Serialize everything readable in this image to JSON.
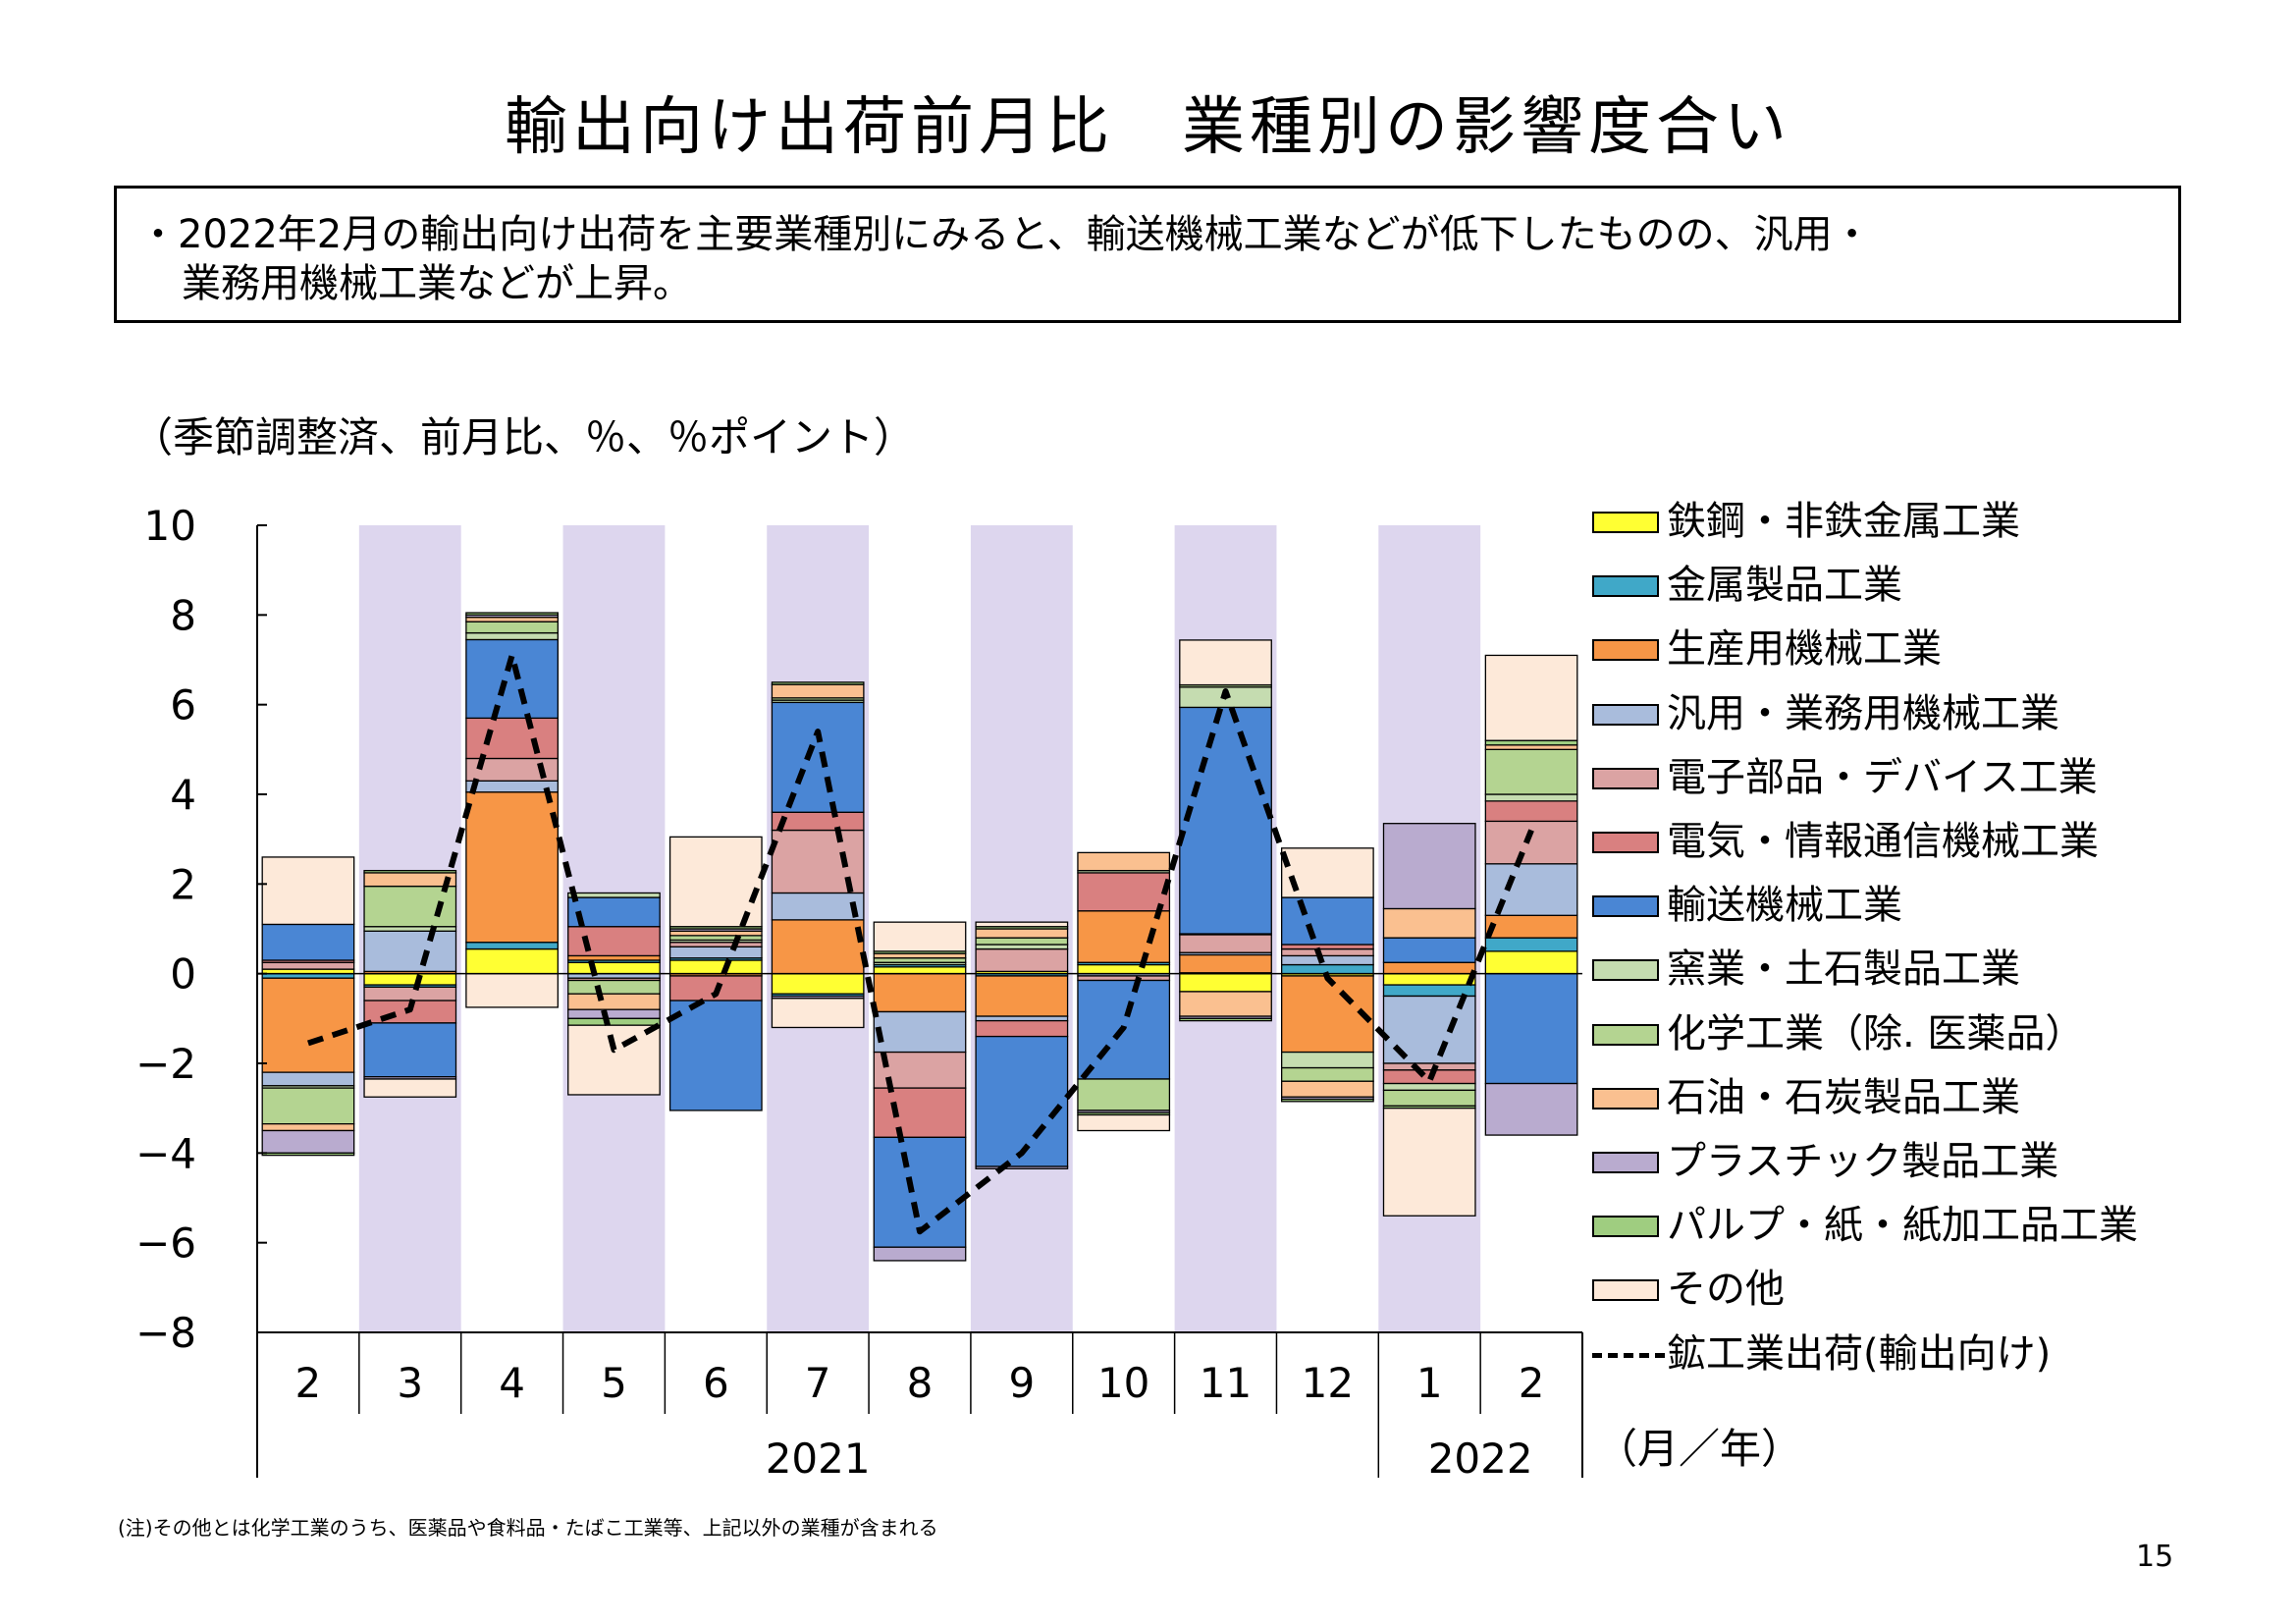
{
  "page": {
    "title": "輸出向け出荷前月比　業種別の影響度合い",
    "summary_line1": "・2022年2月の輸出向け出荷を主要業種別にみると、輸送機械工業などが低下したものの、汎用・",
    "summary_line2": "業務用機械工業などが上昇。",
    "unit_note": "（季節調整済、前月比、％、％ポイント）",
    "footnote": "(注)その他とは化学工業のうち、医薬品や食料品・たばこ工業等、上記以外の業種が含まれる",
    "page_number": "15"
  },
  "chart_data": {
    "type": "bar",
    "stacked": true,
    "categories": [
      "2",
      "3",
      "4",
      "5",
      "6",
      "7",
      "8",
      "9",
      "10",
      "11",
      "12",
      "1",
      "2"
    ],
    "year_labels": [
      {
        "label": "2021",
        "from": 0,
        "to": 10
      },
      {
        "label": "2022",
        "from": 11,
        "to": 12
      }
    ],
    "x_unit_label": "（月／年）",
    "ylim": [
      -8,
      10
    ],
    "yticks": [
      10,
      8,
      6,
      4,
      2,
      0,
      -2,
      -4,
      -6,
      -8
    ],
    "shaded_categories": [
      1,
      3,
      5,
      7,
      9,
      11
    ],
    "shade_color": "#ddd6ee",
    "series": [
      {
        "name": "鉄鋼・非鉄金属工業",
        "color": "#ffff33",
        "values": [
          0.1,
          -0.25,
          0.55,
          0.25,
          0.3,
          -0.45,
          0.15,
          0.05,
          0.2,
          -0.4,
          -0.05,
          -0.25,
          0.5
        ]
      },
      {
        "name": "金属製品工業",
        "color": "#40a8c8",
        "values": [
          -0.1,
          -0.05,
          0.15,
          0.05,
          0.05,
          -0.05,
          0.05,
          -0.05,
          0.05,
          0.02,
          0.2,
          -0.25,
          0.3
        ]
      },
      {
        "name": "生産用機械工業",
        "color": "#f79646",
        "values": [
          -2.1,
          0.05,
          3.35,
          0.1,
          -0.05,
          1.2,
          -0.85,
          -0.9,
          1.15,
          0.4,
          -1.7,
          0.25,
          0.5
        ]
      },
      {
        "name": "汎用・業務用機械工業",
        "color": "#a9bcdc",
        "values": [
          -0.3,
          0.9,
          0.25,
          -0.1,
          0.25,
          0.6,
          -0.9,
          -0.1,
          -0.05,
          0.05,
          0.2,
          -1.5,
          1.15
        ]
      },
      {
        "name": "電子部品・デバイス工業",
        "color": "#dba3a3",
        "values": [
          0.15,
          -0.3,
          0.5,
          -0.05,
          0.1,
          1.4,
          -0.8,
          0.5,
          -0.1,
          0.4,
          0.15,
          -0.15,
          0.95
        ]
      },
      {
        "name": "電気・情報通信機械工業",
        "color": "#d98080",
        "values": [
          0.05,
          -0.5,
          0.9,
          0.65,
          -0.55,
          0.4,
          -1.1,
          -0.35,
          0.85,
          0.02,
          0.1,
          -0.3,
          0.45
        ]
      },
      {
        "name": "輸送機械工業",
        "color": "#4a86d4",
        "values": [
          0.8,
          -1.2,
          1.75,
          0.65,
          -2.45,
          2.45,
          -2.45,
          -2.9,
          -2.2,
          5.05,
          1.05,
          0.55,
          -2.45
        ]
      },
      {
        "name": "窯業・土石製品工業",
        "color": "#c5dcb0",
        "values": [
          -0.05,
          0.1,
          0.15,
          0.1,
          0.05,
          0.05,
          0.05,
          0.1,
          0.05,
          0.45,
          -0.35,
          -0.15,
          0.15
        ]
      },
      {
        "name": "化学工業（除. 医薬品）",
        "color": "#b4d491",
        "values": [
          -0.8,
          0.9,
          0.25,
          -0.3,
          0.1,
          0.05,
          0.1,
          0.15,
          -0.7,
          0.05,
          -0.3,
          -0.35,
          1.0
        ]
      },
      {
        "name": "石油・石炭製品工業",
        "color": "#fac090",
        "values": [
          -0.15,
          0.3,
          0.1,
          -0.35,
          0.1,
          0.3,
          0.1,
          0.2,
          0.4,
          -0.55,
          -0.35,
          0.65,
          0.1
        ]
      },
      {
        "name": "プラスチック製品工業",
        "color": "#b9abcf",
        "values": [
          -0.5,
          -0.05,
          0.05,
          -0.2,
          0.05,
          -0.05,
          -0.3,
          -0.05,
          -0.05,
          -0.05,
          -0.05,
          1.9,
          -1.15
        ]
      },
      {
        "name": "パルプ・紙・紙加工品工業",
        "color": "#9fcd80",
        "values": [
          -0.05,
          0.05,
          0.05,
          -0.15,
          0.05,
          0.05,
          0.05,
          0.05,
          -0.05,
          -0.05,
          -0.05,
          -0.05,
          0.1
        ]
      },
      {
        "name": "その他",
        "color": "#fde9d9",
        "values": [
          1.5,
          -0.4,
          -0.75,
          -1.55,
          2.0,
          -0.65,
          0.65,
          0.1,
          -0.35,
          1.0,
          1.1,
          -2.4,
          1.9
        ]
      }
    ],
    "line": {
      "name": "鉱工業出荷（輸出向け）",
      "color": "#000000",
      "values": [
        -1.55,
        -0.8,
        7.1,
        -1.7,
        -0.45,
        5.4,
        -5.75,
        -4.0,
        -1.2,
        6.3,
        -0.1,
        -2.4,
        3.2
      ]
    },
    "legend_items": [
      {
        "name": "鉄鋼・非鉄金属工業",
        "color": "#ffff33",
        "kind": "box"
      },
      {
        "name": "金属製品工業",
        "color": "#40a8c8",
        "kind": "box"
      },
      {
        "name": "生産用機械工業",
        "color": "#f79646",
        "kind": "box"
      },
      {
        "name": "汎用・業務用機械工業",
        "color": "#a9bcdc",
        "kind": "box"
      },
      {
        "name": "電子部品・デバイス工業",
        "color": "#dba3a3",
        "kind": "box"
      },
      {
        "name": "電気・情報通信機械工業",
        "color": "#d98080",
        "kind": "box"
      },
      {
        "name": "輸送機械工業",
        "color": "#4a86d4",
        "kind": "box"
      },
      {
        "name": "窯業・土石製品工業",
        "color": "#c5dcb0",
        "kind": "box"
      },
      {
        "name": "化学工業（除.  医薬品）",
        "color": "#b4d491",
        "kind": "box"
      },
      {
        "name": "石油・石炭製品工業",
        "color": "#fac090",
        "kind": "box"
      },
      {
        "name": "プラスチック製品工業",
        "color": "#b9abcf",
        "kind": "box"
      },
      {
        "name": "パルプ・紙・紙加工品工業",
        "color": "#9fcd80",
        "kind": "box"
      },
      {
        "name": "その他",
        "color": "#fde9d9",
        "kind": "box"
      },
      {
        "name": "鉱工業出荷(輸出向け)",
        "color": "#000000",
        "kind": "dashed-line"
      }
    ]
  }
}
